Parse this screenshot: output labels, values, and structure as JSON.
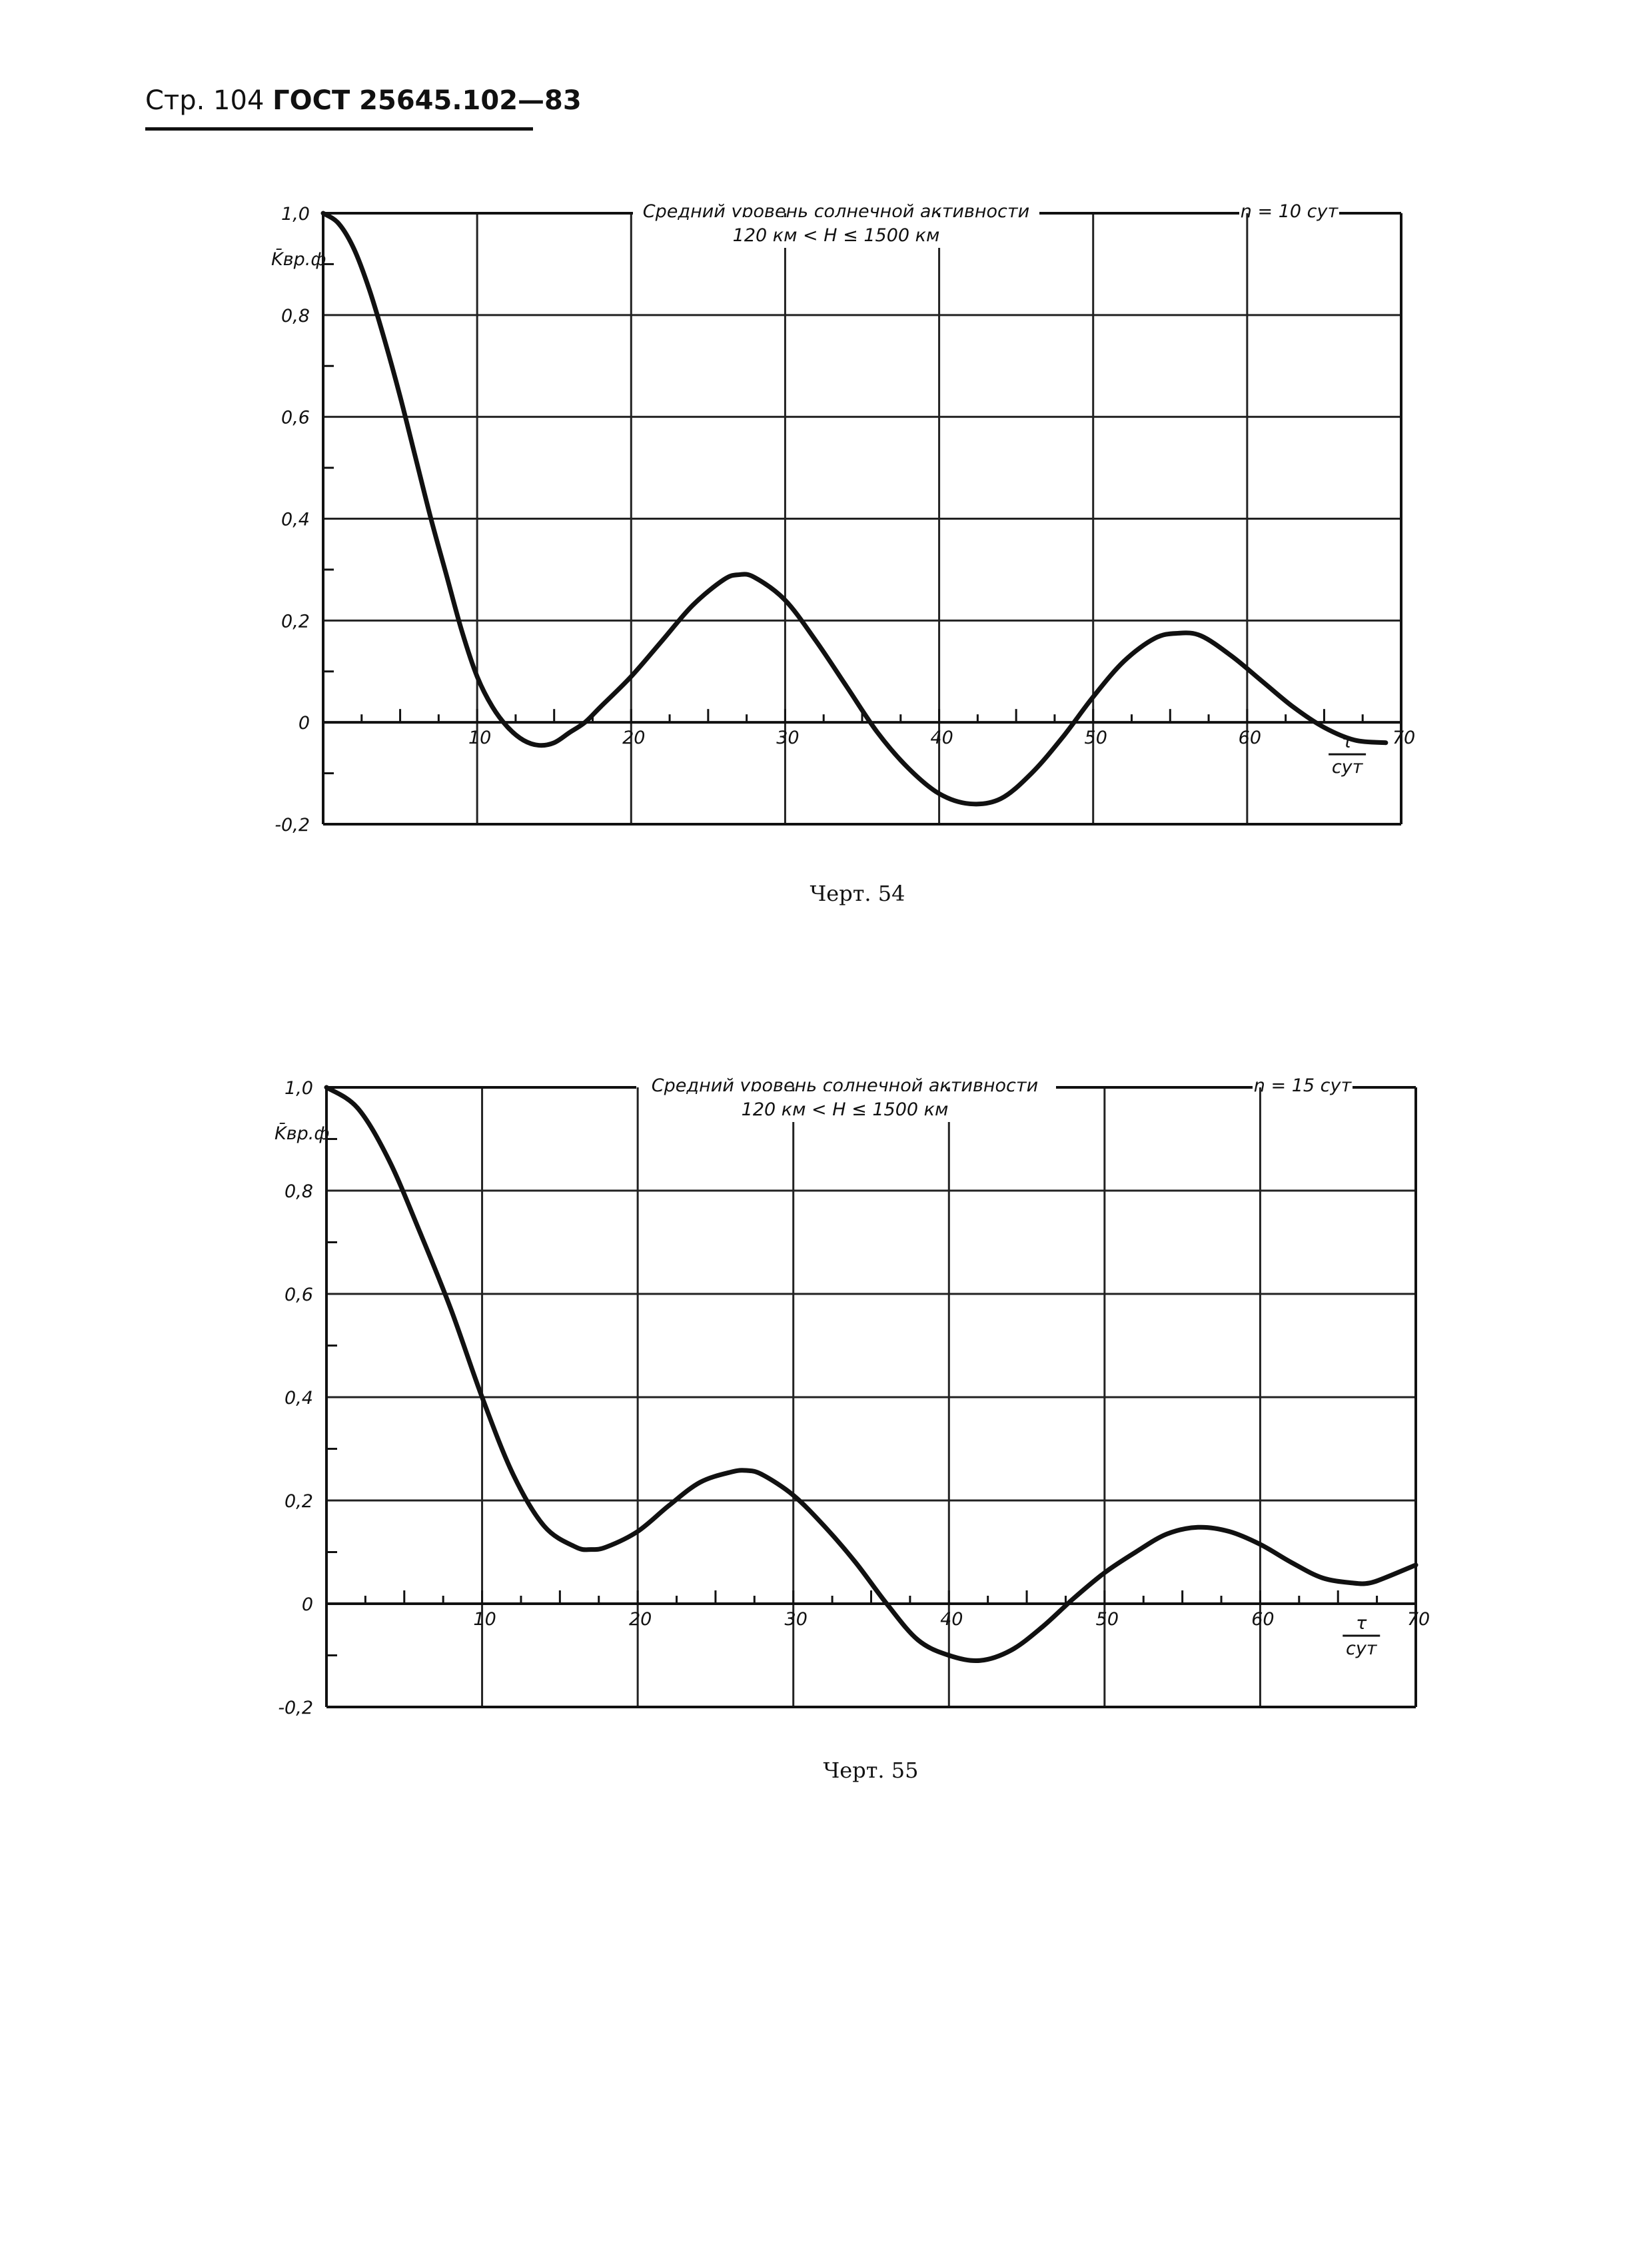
{
  "header": {
    "page_label": "Стр. 104",
    "standard": "ГОСТ 25645.102—83"
  },
  "chart_data": [
    {
      "type": "line",
      "caption": "Черт. 54",
      "title": "Средний уровень солнечной активности",
      "subtitle": "120 км < H ≤ 1500 км",
      "note": "n = 10 сут",
      "ylabel": "K̄вр.ф",
      "xlabel": "τ / сут",
      "xlabel_num": "τ",
      "xlabel_den": "сут",
      "xlim": [
        0,
        70
      ],
      "ylim": [
        -0.2,
        1.0
      ],
      "x_ticks": [
        "10",
        "20",
        "30",
        "40",
        "50",
        "60",
        "70"
      ],
      "y_ticks": [
        "1,0",
        "0,8",
        "0,6",
        "0,4",
        "0,2",
        "0",
        "-0,2"
      ],
      "grid": true,
      "series": [
        {
          "x": [
            0,
            1,
            2,
            3,
            4,
            5,
            6,
            7,
            8,
            9,
            10,
            11,
            12,
            13,
            14,
            15,
            16,
            17,
            18,
            20,
            22,
            24,
            26,
            27,
            28,
            30,
            32,
            34,
            36,
            38,
            40,
            42,
            44,
            46,
            48,
            50,
            52,
            54,
            55.5,
            57,
            59,
            61,
            63,
            65,
            67,
            69
          ],
          "y": [
            1.0,
            0.98,
            0.93,
            0.85,
            0.75,
            0.64,
            0.52,
            0.4,
            0.29,
            0.18,
            0.09,
            0.03,
            -0.01,
            -0.035,
            -0.045,
            -0.04,
            -0.02,
            0.0,
            0.03,
            0.09,
            0.16,
            0.23,
            0.28,
            0.29,
            0.285,
            0.24,
            0.16,
            0.07,
            -0.02,
            -0.09,
            -0.14,
            -0.16,
            -0.15,
            -0.1,
            -0.03,
            0.05,
            0.12,
            0.165,
            0.175,
            0.17,
            0.13,
            0.08,
            0.03,
            -0.01,
            -0.035,
            -0.04
          ]
        }
      ]
    },
    {
      "type": "line",
      "caption": "Черт. 55",
      "title": "Средний уровень солнечной активности",
      "subtitle": "120 км < H ≤ 1500 км",
      "note": "n = 15 сут",
      "ylabel": "K̄вр.ф",
      "xlabel": "τ / сут",
      "xlabel_num": "τ",
      "xlabel_den": "сут",
      "xlim": [
        0,
        70
      ],
      "ylim": [
        -0.2,
        1.0
      ],
      "x_ticks": [
        "10",
        "20",
        "30",
        "40",
        "50",
        "60",
        "70"
      ],
      "y_ticks": [
        "1,0",
        "0,8",
        "0,6",
        "0,4",
        "0,2",
        "0",
        "-0,2"
      ],
      "grid": true,
      "series": [
        {
          "x": [
            0,
            2,
            4,
            6,
            8,
            10,
            12,
            14,
            16,
            17,
            18,
            20,
            22,
            24,
            26,
            27,
            28,
            30,
            32,
            34,
            36,
            38,
            40,
            42,
            44,
            46,
            48,
            50,
            52,
            54,
            56,
            58,
            60,
            62,
            64,
            66,
            67,
            68,
            70
          ],
          "y": [
            1.0,
            0.96,
            0.86,
            0.72,
            0.57,
            0.4,
            0.25,
            0.15,
            0.11,
            0.105,
            0.11,
            0.14,
            0.19,
            0.235,
            0.255,
            0.258,
            0.25,
            0.21,
            0.15,
            0.08,
            0.0,
            -0.07,
            -0.1,
            -0.11,
            -0.09,
            -0.045,
            0.01,
            0.06,
            0.1,
            0.135,
            0.148,
            0.14,
            0.115,
            0.08,
            0.05,
            0.04,
            0.04,
            0.05,
            0.075
          ]
        }
      ]
    }
  ]
}
